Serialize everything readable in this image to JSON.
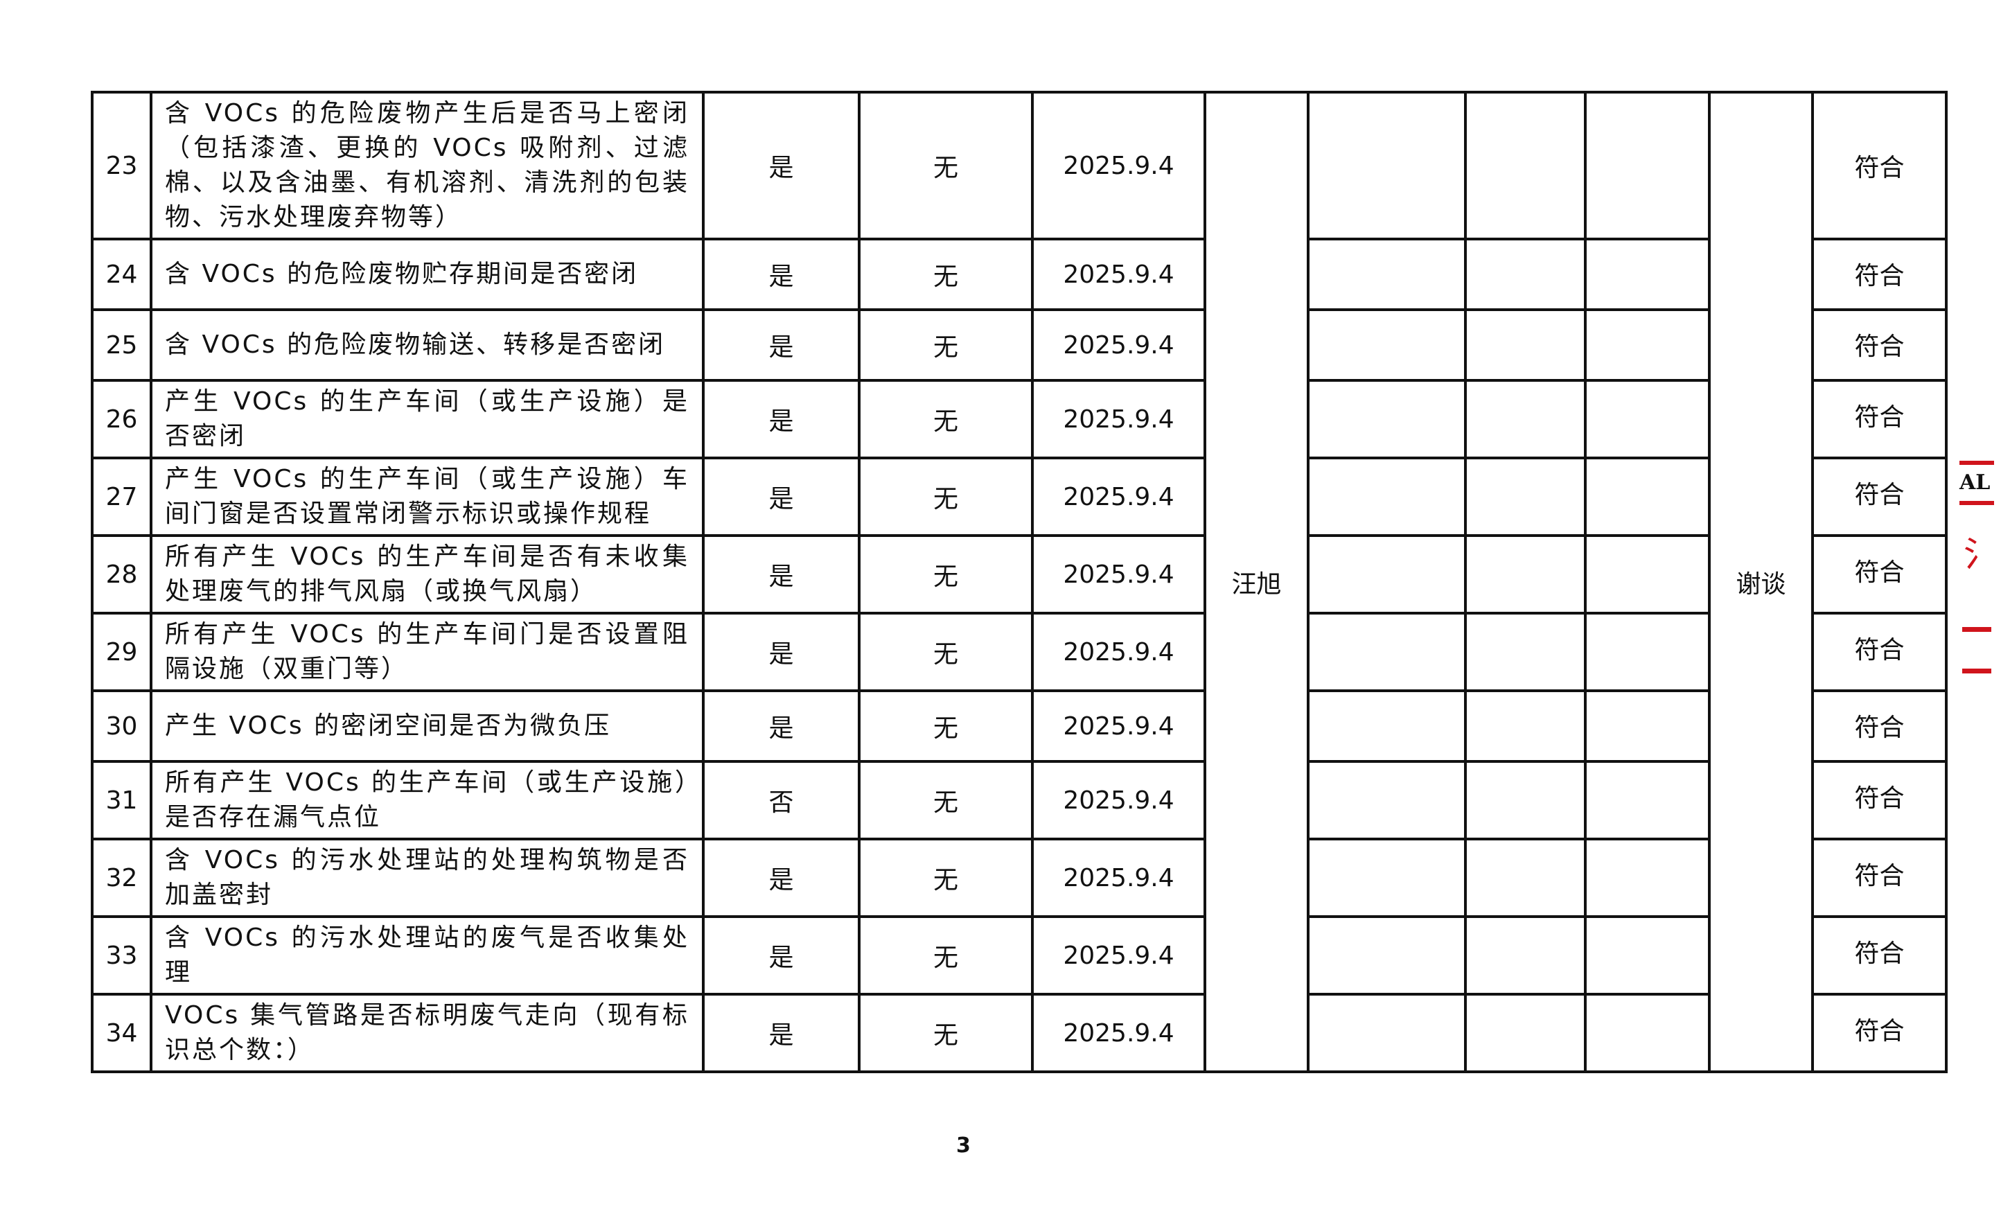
{
  "rows": [
    {
      "no": "23",
      "item": "含 VOCs 的危险废物产生后是否马上密闭（包括漆渣、更换的 VOCs 吸附剂、过滤棉、以及含油墨、有机溶剂、清洗剂的包装物、污水处理废弃物等）",
      "answer": "是",
      "issue": "无",
      "date": "2025.9.4",
      "result": "符合"
    },
    {
      "no": "24",
      "item": "含 VOCs 的危险废物贮存期间是否密闭",
      "answer": "是",
      "issue": "无",
      "date": "2025.9.4",
      "result": "符合"
    },
    {
      "no": "25",
      "item": "含 VOCs 的危险废物输送、转移是否密闭",
      "answer": "是",
      "issue": "无",
      "date": "2025.9.4",
      "result": "符合"
    },
    {
      "no": "26",
      "item": "产生 VOCs 的生产车间（或生产设施）是否密闭",
      "answer": "是",
      "issue": "无",
      "date": "2025.9.4",
      "result": "符合"
    },
    {
      "no": "27",
      "item": "产生 VOCs 的生产车间（或生产设施）车间门窗是否设置常闭警示标识或操作规程",
      "answer": "是",
      "issue": "无",
      "date": "2025.9.4",
      "result": "符合"
    },
    {
      "no": "28",
      "item": "所有产生 VOCs 的生产车间是否有未收集处理废气的排气风扇（或换气风扇）",
      "answer": "是",
      "issue": "无",
      "date": "2025.9.4",
      "result": "符合"
    },
    {
      "no": "29",
      "item": "所有产生 VOCs 的生产车间门是否设置阻隔设施（双重门等）",
      "answer": "是",
      "issue": "无",
      "date": "2025.9.4",
      "result": "符合"
    },
    {
      "no": "30",
      "item": "产生 VOCs 的密闭空间是否为微负压",
      "answer": "是",
      "issue": "无",
      "date": "2025.9.4",
      "result": "符合"
    },
    {
      "no": "31",
      "item": "所有产生 VOCs 的生产车间（或生产设施）是否存在漏气点位",
      "answer": "否",
      "issue": "无",
      "date": "2025.9.4",
      "result": "符合"
    },
    {
      "no": "32",
      "item": "含 VOCs 的污水处理站的处理构筑物是否加盖密封",
      "answer": "是",
      "issue": "无",
      "date": "2025.9.4",
      "result": "符合"
    },
    {
      "no": "33",
      "item": "含 VOCs 的污水处理站的废气是否收集处理",
      "answer": "是",
      "issue": "无",
      "date": "2025.9.4",
      "result": "符合"
    },
    {
      "no": "34",
      "item": "VOCs 集气管路是否标明废气走向（现有标识总个数：）",
      "answer": "是",
      "issue": "无",
      "date": "2025.9.4",
      "result": "符合"
    }
  ],
  "inspector": "汪旭",
  "method": "谢谈",
  "page_number": "3",
  "stamp_text": "AL 门 浙",
  "stamp_color": "#d0141c"
}
